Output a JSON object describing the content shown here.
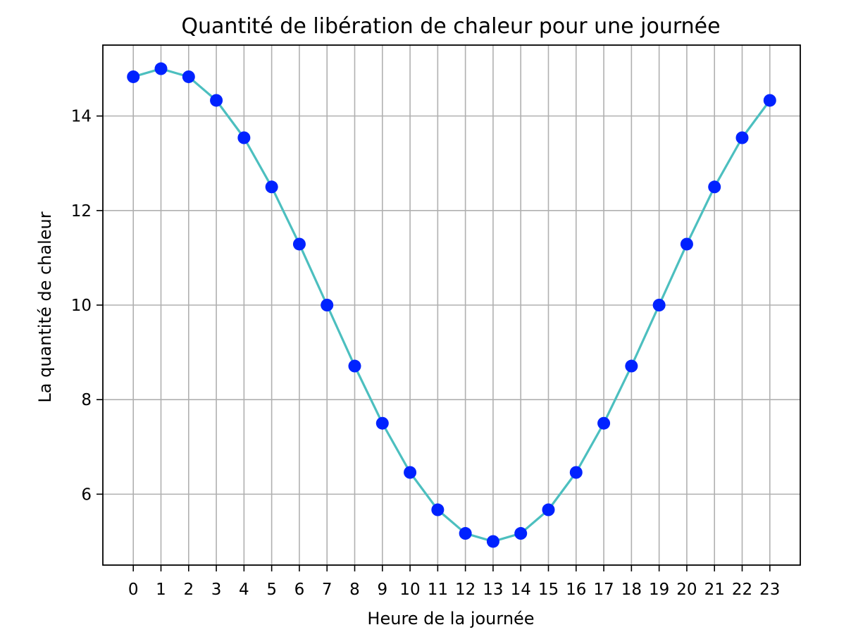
{
  "chart_data": {
    "type": "line",
    "title": "Quantité de libération de chaleur pour une journée",
    "xlabel": "Heure de la journée",
    "ylabel": "La quantité de chaleur",
    "x": [
      0,
      1,
      2,
      3,
      4,
      5,
      6,
      7,
      8,
      9,
      10,
      11,
      12,
      13,
      14,
      15,
      16,
      17,
      18,
      19,
      20,
      21,
      22,
      23
    ],
    "series": [
      {
        "values": [
          14.83,
          15.0,
          14.83,
          14.33,
          13.54,
          12.5,
          11.29,
          10.0,
          8.71,
          7.5,
          6.46,
          5.67,
          5.17,
          5.0,
          5.17,
          5.67,
          6.46,
          7.5,
          8.71,
          10.0,
          11.29,
          12.5,
          13.54,
          14.33
        ],
        "line_color": "#4cbfbf",
        "marker_color": "#0022ff"
      }
    ],
    "xlim": [
      -1.1,
      24.1
    ],
    "ylim": [
      4.5,
      15.5
    ],
    "xticks": [
      0,
      1,
      2,
      3,
      4,
      5,
      6,
      7,
      8,
      9,
      10,
      11,
      12,
      13,
      14,
      15,
      16,
      17,
      18,
      19,
      20,
      21,
      22,
      23
    ],
    "yticks": [
      6,
      8,
      10,
      12,
      14
    ],
    "grid": true,
    "grid_color": "#b0b0b0",
    "frame_color": "#000000"
  }
}
